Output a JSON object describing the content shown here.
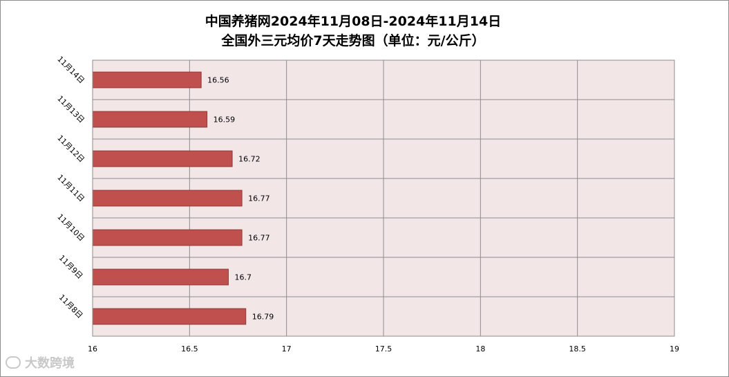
{
  "chart_data": {
    "type": "bar",
    "orientation": "horizontal",
    "title": "中国养猪网2024年11月08日-2024年11月14日",
    "subtitle": "全国外三元均价7天走势图（单位：元/公斤）",
    "categories": [
      "11月14日",
      "11月13日",
      "11月12日",
      "11月11日",
      "11月10日",
      "11月9日",
      "11月8日"
    ],
    "values": [
      16.56,
      16.59,
      16.72,
      16.77,
      16.77,
      16.7,
      16.79
    ],
    "value_labels": [
      "16.56",
      "16.59",
      "16.72",
      "16.77",
      "16.77",
      "16.7",
      "16.79"
    ],
    "xlim": [
      16,
      19
    ],
    "x_ticks": [
      "16",
      "16.5",
      "17",
      "17.5",
      "18",
      "18.5",
      "19"
    ],
    "grid": true,
    "bar_color": "#c0504d",
    "plot_background": "#f2e6e6",
    "grid_color": "#8c8c8c"
  },
  "watermark": {
    "text": "大数跨境"
  }
}
